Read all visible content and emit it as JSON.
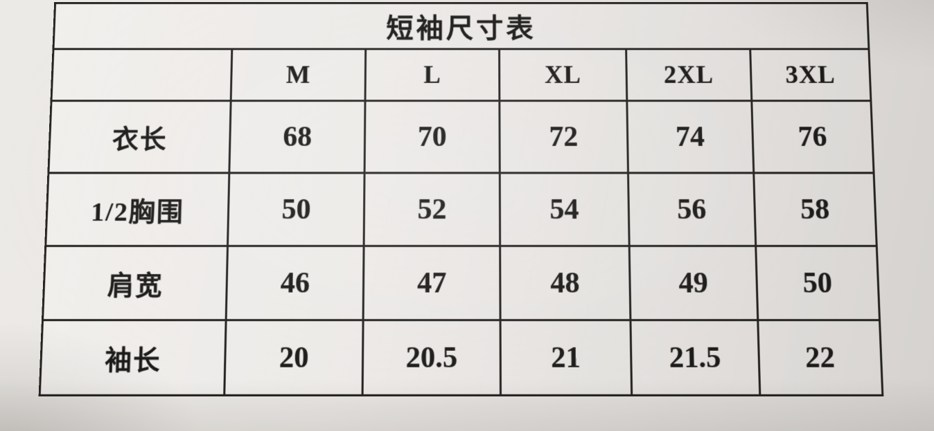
{
  "title": "短袖尺寸表",
  "table": {
    "columns": [
      "M",
      "L",
      "XL",
      "2XL",
      "3XL"
    ],
    "rows": [
      {
        "label": "衣长",
        "values": [
          "68",
          "70",
          "72",
          "74",
          "76"
        ]
      },
      {
        "label": "1/2胸围",
        "values": [
          "50",
          "52",
          "54",
          "56",
          "58"
        ]
      },
      {
        "label": "肩宽",
        "values": [
          "46",
          "47",
          "48",
          "49",
          "50"
        ]
      },
      {
        "label": "袖长",
        "values": [
          "20",
          "20.5",
          "21",
          "21.5",
          "22"
        ]
      }
    ]
  },
  "colors": {
    "paper": "#e9e6e3",
    "paper-dark": "#d5d2cf",
    "ink": "#1c1b19",
    "line": "#242321"
  }
}
